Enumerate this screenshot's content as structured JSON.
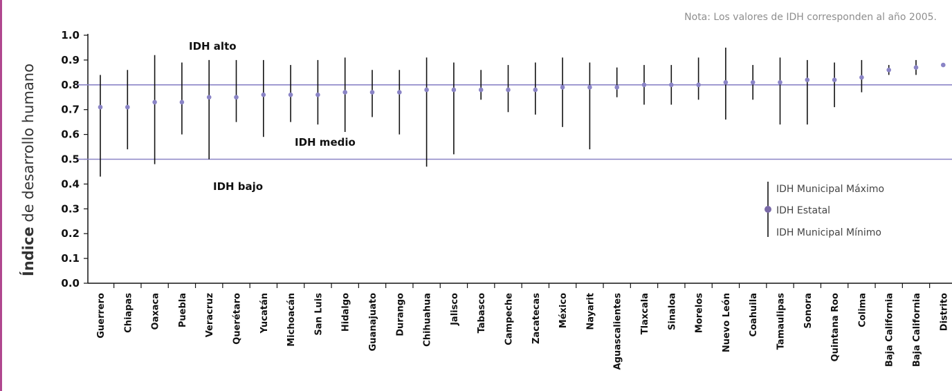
{
  "note": "Nota: Los valores de IDH corresponden al año 2005.",
  "chart_data": {
    "type": "range-dot",
    "ylabel_bold": "Índice",
    "ylabel_rest": " de desarrollo humano",
    "ylim": [
      0,
      1.0
    ],
    "yticks": [
      "0.0",
      "0.1",
      "0.2",
      "0.3",
      "0.4",
      "0.5",
      "0.6",
      "0.7",
      "0.8",
      "0.9",
      "1.0"
    ],
    "reference_lines": [
      0.5,
      0.8
    ],
    "zones": {
      "high": "IDH alto",
      "medium": "IDH medio",
      "low": "IDH bajo"
    },
    "legend": {
      "max": "IDH  Municipal Máximo",
      "state": "IDH  Estatal",
      "min": "IDH  Municipal Mínimo"
    },
    "categories": [
      "Guerrero",
      "Chiapas",
      "Oaxaca",
      "Puebla",
      "Veracruz",
      "Querétaro",
      "Yucatán",
      "Michoacán",
      "San Luis",
      "Hidalgo",
      "Guanajuato",
      "Durango",
      "Chihuahua",
      "Jalisco",
      "Tabasco",
      "Campeche",
      "Zacatecas",
      "México",
      "Nayarit",
      "Aguascalientes",
      "Tlaxcala",
      "Sinaloa",
      "Morelos",
      "Nuevo León",
      "Coahuila",
      "Tamaulipas",
      "Sonora",
      "Quintana Roo",
      "Colima",
      "Baja California",
      "Baja California",
      "Distrito"
    ],
    "state": [
      0.71,
      0.71,
      0.73,
      0.73,
      0.75,
      0.75,
      0.76,
      0.76,
      0.76,
      0.77,
      0.77,
      0.77,
      0.78,
      0.78,
      0.78,
      0.78,
      0.78,
      0.79,
      0.79,
      0.79,
      0.8,
      0.8,
      0.8,
      0.81,
      0.81,
      0.81,
      0.82,
      0.82,
      0.83,
      0.86,
      0.87,
      0.88
    ],
    "max": [
      0.84,
      0.86,
      0.92,
      0.89,
      0.9,
      0.9,
      0.9,
      0.88,
      0.9,
      0.91,
      0.86,
      0.86,
      0.91,
      0.89,
      0.86,
      0.88,
      0.89,
      0.91,
      0.89,
      0.87,
      0.88,
      0.88,
      0.91,
      0.95,
      0.88,
      0.91,
      0.9,
      0.89,
      0.9,
      0.88,
      0.9,
      0.88
    ],
    "min": [
      0.43,
      0.54,
      0.48,
      0.6,
      0.5,
      0.65,
      0.59,
      0.65,
      0.64,
      0.61,
      0.67,
      0.6,
      0.47,
      0.52,
      0.74,
      0.69,
      0.68,
      0.63,
      0.54,
      0.75,
      0.72,
      0.72,
      0.74,
      0.66,
      0.74,
      0.64,
      0.64,
      0.71,
      0.77,
      0.84,
      0.84,
      0.88
    ],
    "colors": {
      "range": "#111111",
      "state": "#8a84c6",
      "reference": "#8a84c6",
      "axis": "#111111"
    }
  }
}
